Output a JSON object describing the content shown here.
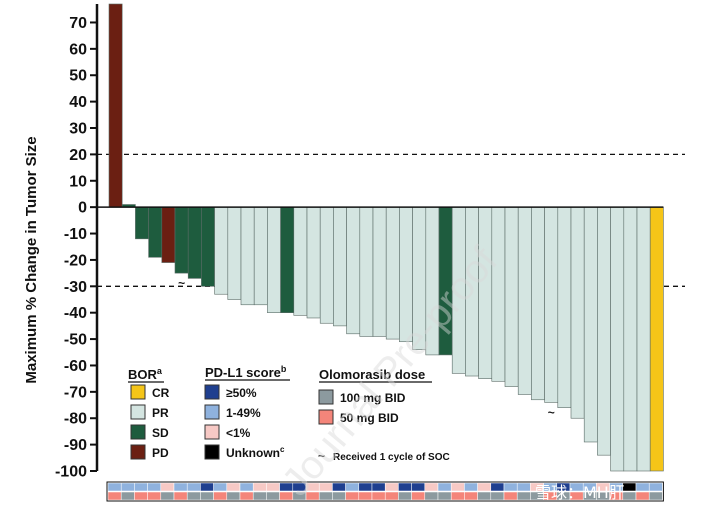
{
  "chart_data": {
    "type": "bar",
    "title": "",
    "ylabel": "Maximum % Change in Tumor Size",
    "xlabel": "",
    "ylim": [
      -100,
      77
    ],
    "yticks": [
      70,
      60,
      50,
      40,
      30,
      20,
      10,
      0,
      -10,
      -20,
      -30,
      -40,
      -50,
      -60,
      -70,
      -80,
      -90,
      -100
    ],
    "reference_lines": [
      20,
      -30
    ],
    "bor_colors": {
      "CR": "#f5c518",
      "PR": "#d4e5e1",
      "SD": "#1e5c3e",
      "PD": "#6b1f12"
    },
    "values": [
      77,
      1,
      -12,
      -19,
      -21,
      -25,
      -27,
      -30,
      -33,
      -35,
      -37,
      -37,
      -40,
      -40,
      -41,
      -42,
      -44,
      -45,
      -48,
      -49,
      -49,
      -50,
      -51,
      -54,
      -56,
      -56,
      -63,
      -64,
      -65,
      -66,
      -68,
      -71,
      -73,
      -74,
      -76,
      -80,
      -89,
      -94,
      -100,
      -100,
      -100,
      -100
    ],
    "bor": [
      "PD",
      "SD",
      "SD",
      "SD",
      "PD",
      "SD",
      "SD",
      "SD",
      "PR",
      "PR",
      "PR",
      "PR",
      "PR",
      "SD",
      "PR",
      "PR",
      "PR",
      "PR",
      "PR",
      "PR",
      "PR",
      "PR",
      "PR",
      "PR",
      "PR",
      "SD",
      "PR",
      "PR",
      "PR",
      "PR",
      "PR",
      "PR",
      "PR",
      "PR",
      "PR",
      "PR",
      "PR",
      "PR",
      "PR",
      "PR",
      "PR",
      "CR"
    ],
    "soc_markers": [
      5,
      33
    ],
    "pdl1_track": [
      "1-49%",
      "1-49%",
      "1-49%",
      "1-49%",
      "<1%",
      "1-49%",
      "1-49%",
      "≥50%",
      "1-49%",
      "<1%",
      "1-49%",
      "<1%",
      "<1%",
      "≥50%",
      "≥50%",
      "<1%",
      "<1%",
      "≥50%",
      "1-49%",
      "≥50%",
      "≥50%",
      "<1%",
      "≥50%",
      "≥50%",
      "<1%",
      "1-49%",
      "<1%",
      "1-49%",
      "<1%",
      "≥50%",
      "1-49%",
      "1-49%",
      "<1%",
      "1-49%",
      "≥50%",
      "1-49%",
      "1-49%",
      "<1%",
      "1-49%",
      "Unknown",
      "1-49%",
      "1-49%"
    ],
    "dose_track": [
      "50 mg BID",
      "100 mg BID",
      "50 mg BID",
      "50 mg BID",
      "100 mg BID",
      "50 mg BID",
      "100 mg BID",
      "100 mg BID",
      "50 mg BID",
      "100 mg BID",
      "50 mg BID",
      "100 mg BID",
      "100 mg BID",
      "50 mg BID",
      "100 mg BID",
      "50 mg BID",
      "100 mg BID",
      "100 mg BID",
      "50 mg BID",
      "50 mg BID",
      "50 mg BID",
      "50 mg BID",
      "100 mg BID",
      "50 mg BID",
      "100 mg BID",
      "100 mg BID",
      "50 mg BID",
      "50 mg BID",
      "100 mg BID",
      "100 mg BID",
      "50 mg BID",
      "100 mg BID",
      "100 mg BID",
      "50 mg BID",
      "100 mg BID",
      "50 mg BID",
      "100 mg BID",
      "100 mg BID",
      "50 mg BID",
      "100 mg BID",
      "50 mg BID",
      "100 mg BID"
    ]
  },
  "legend": {
    "bor": {
      "title": "BOR",
      "superscript": "a",
      "items": [
        {
          "label": "CR",
          "color": "#f5c518"
        },
        {
          "label": "PR",
          "color": "#d4e5e1"
        },
        {
          "label": "SD",
          "color": "#1e5c3e"
        },
        {
          "label": "PD",
          "color": "#6b1f12"
        }
      ]
    },
    "pdl1": {
      "title": "PD-L1 score",
      "superscript": "b",
      "items": [
        {
          "label": "≥50%",
          "color": "#1f3f8f",
          "superscript": ""
        },
        {
          "label": "1-49%",
          "color": "#8fb2de",
          "superscript": ""
        },
        {
          "label": "<1%",
          "color": "#f7c9c5",
          "superscript": ""
        },
        {
          "label": "Unknown",
          "color": "#000000",
          "superscript": "c"
        }
      ]
    },
    "dose": {
      "title": "Olomorasib dose",
      "items": [
        {
          "label": "100 mg BID",
          "color": "#8c9a9f"
        },
        {
          "label": "50 mg BID",
          "color": "#f4857a"
        }
      ]
    },
    "soc_note": "Received 1 cycle of SOC",
    "soc_symbol": "~"
  },
  "watermark": {
    "text": "Journal Pre-proof",
    "brand": "雪球：MH肝"
  }
}
